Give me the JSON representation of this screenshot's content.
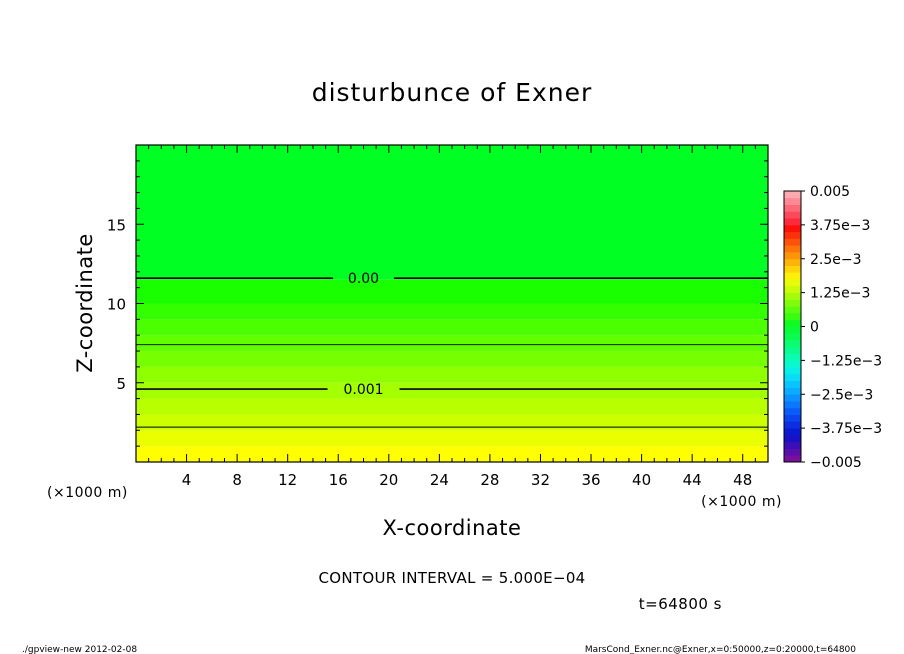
{
  "chart_data": {
    "type": "heatmap",
    "title": "disturbunce of Exner",
    "xlabel": "X-coordinate",
    "ylabel": "Z-coordinate",
    "x_units": "(×1000 m)",
    "y_units": "(×1000 m)",
    "xlim": [
      0,
      50
    ],
    "ylim": [
      0,
      20
    ],
    "x_ticks": [
      4,
      8,
      12,
      16,
      20,
      24,
      28,
      32,
      36,
      40,
      44,
      48
    ],
    "y_ticks": [
      5,
      10,
      15
    ],
    "colorbar": {
      "levels": [
        -0.005,
        -0.00475,
        -0.0045,
        -0.00425,
        -0.004,
        -0.00375,
        -0.0035,
        -0.00325,
        -0.003,
        -0.00275,
        -0.0025,
        -0.00225,
        -0.002,
        -0.00175,
        -0.0015,
        -0.00125,
        -0.001,
        -0.00075,
        -0.0005,
        -0.00025,
        0,
        0.00025,
        0.0005,
        0.00075,
        0.001,
        0.00125,
        0.0015,
        0.00175,
        0.002,
        0.00225,
        0.0025,
        0.00275,
        0.003,
        0.00325,
        0.0035,
        0.00375,
        0.004,
        0.00425,
        0.0045,
        0.00475,
        0.005
      ],
      "colors": [
        "#7a0f9c",
        "#5a0faa",
        "#3a0fb8",
        "#1a10c4",
        "#0a1ad0",
        "#0a2ee0",
        "#0a44ee",
        "#0a5cf8",
        "#0a78ff",
        "#0a92ff",
        "#0aacff",
        "#0ac4ff",
        "#0adcf8",
        "#0aeee8",
        "#0af8d0",
        "#0afcb0",
        "#0afc90",
        "#0afc70",
        "#0afc50",
        "#0afc38",
        "#10fc20",
        "#38fc12",
        "#5cfc0e",
        "#80fc0a",
        "#a4fc0a",
        "#c8fc0a",
        "#e8fc0a",
        "#fcf00a",
        "#fcd40a",
        "#fcb40a",
        "#fc940a",
        "#fc740a",
        "#fc520a",
        "#fc300a",
        "#fc100a",
        "#fc2a3a",
        "#fc4a5a",
        "#fc6a78",
        "#fc8a94",
        "#fcaab0"
      ],
      "tick_values": [
        0.005,
        0.00375,
        0.0025,
        0.00125,
        0,
        -0.00125,
        -0.0025,
        -0.00375,
        -0.005
      ],
      "tick_labels": [
        "0.005",
        "3.75e−3",
        "2.5e−3",
        "1.25e−3",
        "0",
        "−1.25e−3",
        "−2.5e−3",
        "−3.75e−3",
        "−0.005"
      ]
    },
    "bands": [
      {
        "z0": 0,
        "z1": 1,
        "color": "#ffff00"
      },
      {
        "z0": 1,
        "z1": 2,
        "color": "#eaff00"
      },
      {
        "z0": 2,
        "z1": 3,
        "color": "#ccff00"
      },
      {
        "z0": 3,
        "z1": 4,
        "color": "#b8ff00"
      },
      {
        "z0": 4,
        "z1": 5,
        "color": "#a4ff00"
      },
      {
        "z0": 5,
        "z1": 6,
        "color": "#90ff00"
      },
      {
        "z0": 6,
        "z1": 7,
        "color": "#76ff00"
      },
      {
        "z0": 7,
        "z1": 8,
        "color": "#62ff00"
      },
      {
        "z0": 8,
        "z1": 9,
        "color": "#4cff00"
      },
      {
        "z0": 9,
        "z1": 10,
        "color": "#34ff00"
      },
      {
        "z0": 10,
        "z1": 11.5,
        "color": "#1aff00"
      },
      {
        "z0": 11.5,
        "z1": 20,
        "color": "#00ff22"
      }
    ],
    "contours": [
      {
        "z": 11.6,
        "label": "0.00",
        "label_x": 18,
        "style": "thick"
      },
      {
        "z": 7.4,
        "label": "",
        "style": "thin"
      },
      {
        "z": 4.6,
        "label": "0.001",
        "label_x": 18,
        "style": "thick"
      },
      {
        "z": 2.2,
        "label": "",
        "style": "thin"
      }
    ],
    "contour_interval": "CONTOUR INTERVAL = 5.000E−04",
    "time": "t=64800 s"
  },
  "footer": {
    "left": "./gpview-new   2012-02-08",
    "right": "MarsCond_Exner.nc@Exner,x=0:50000,z=0:20000,t=64800"
  }
}
